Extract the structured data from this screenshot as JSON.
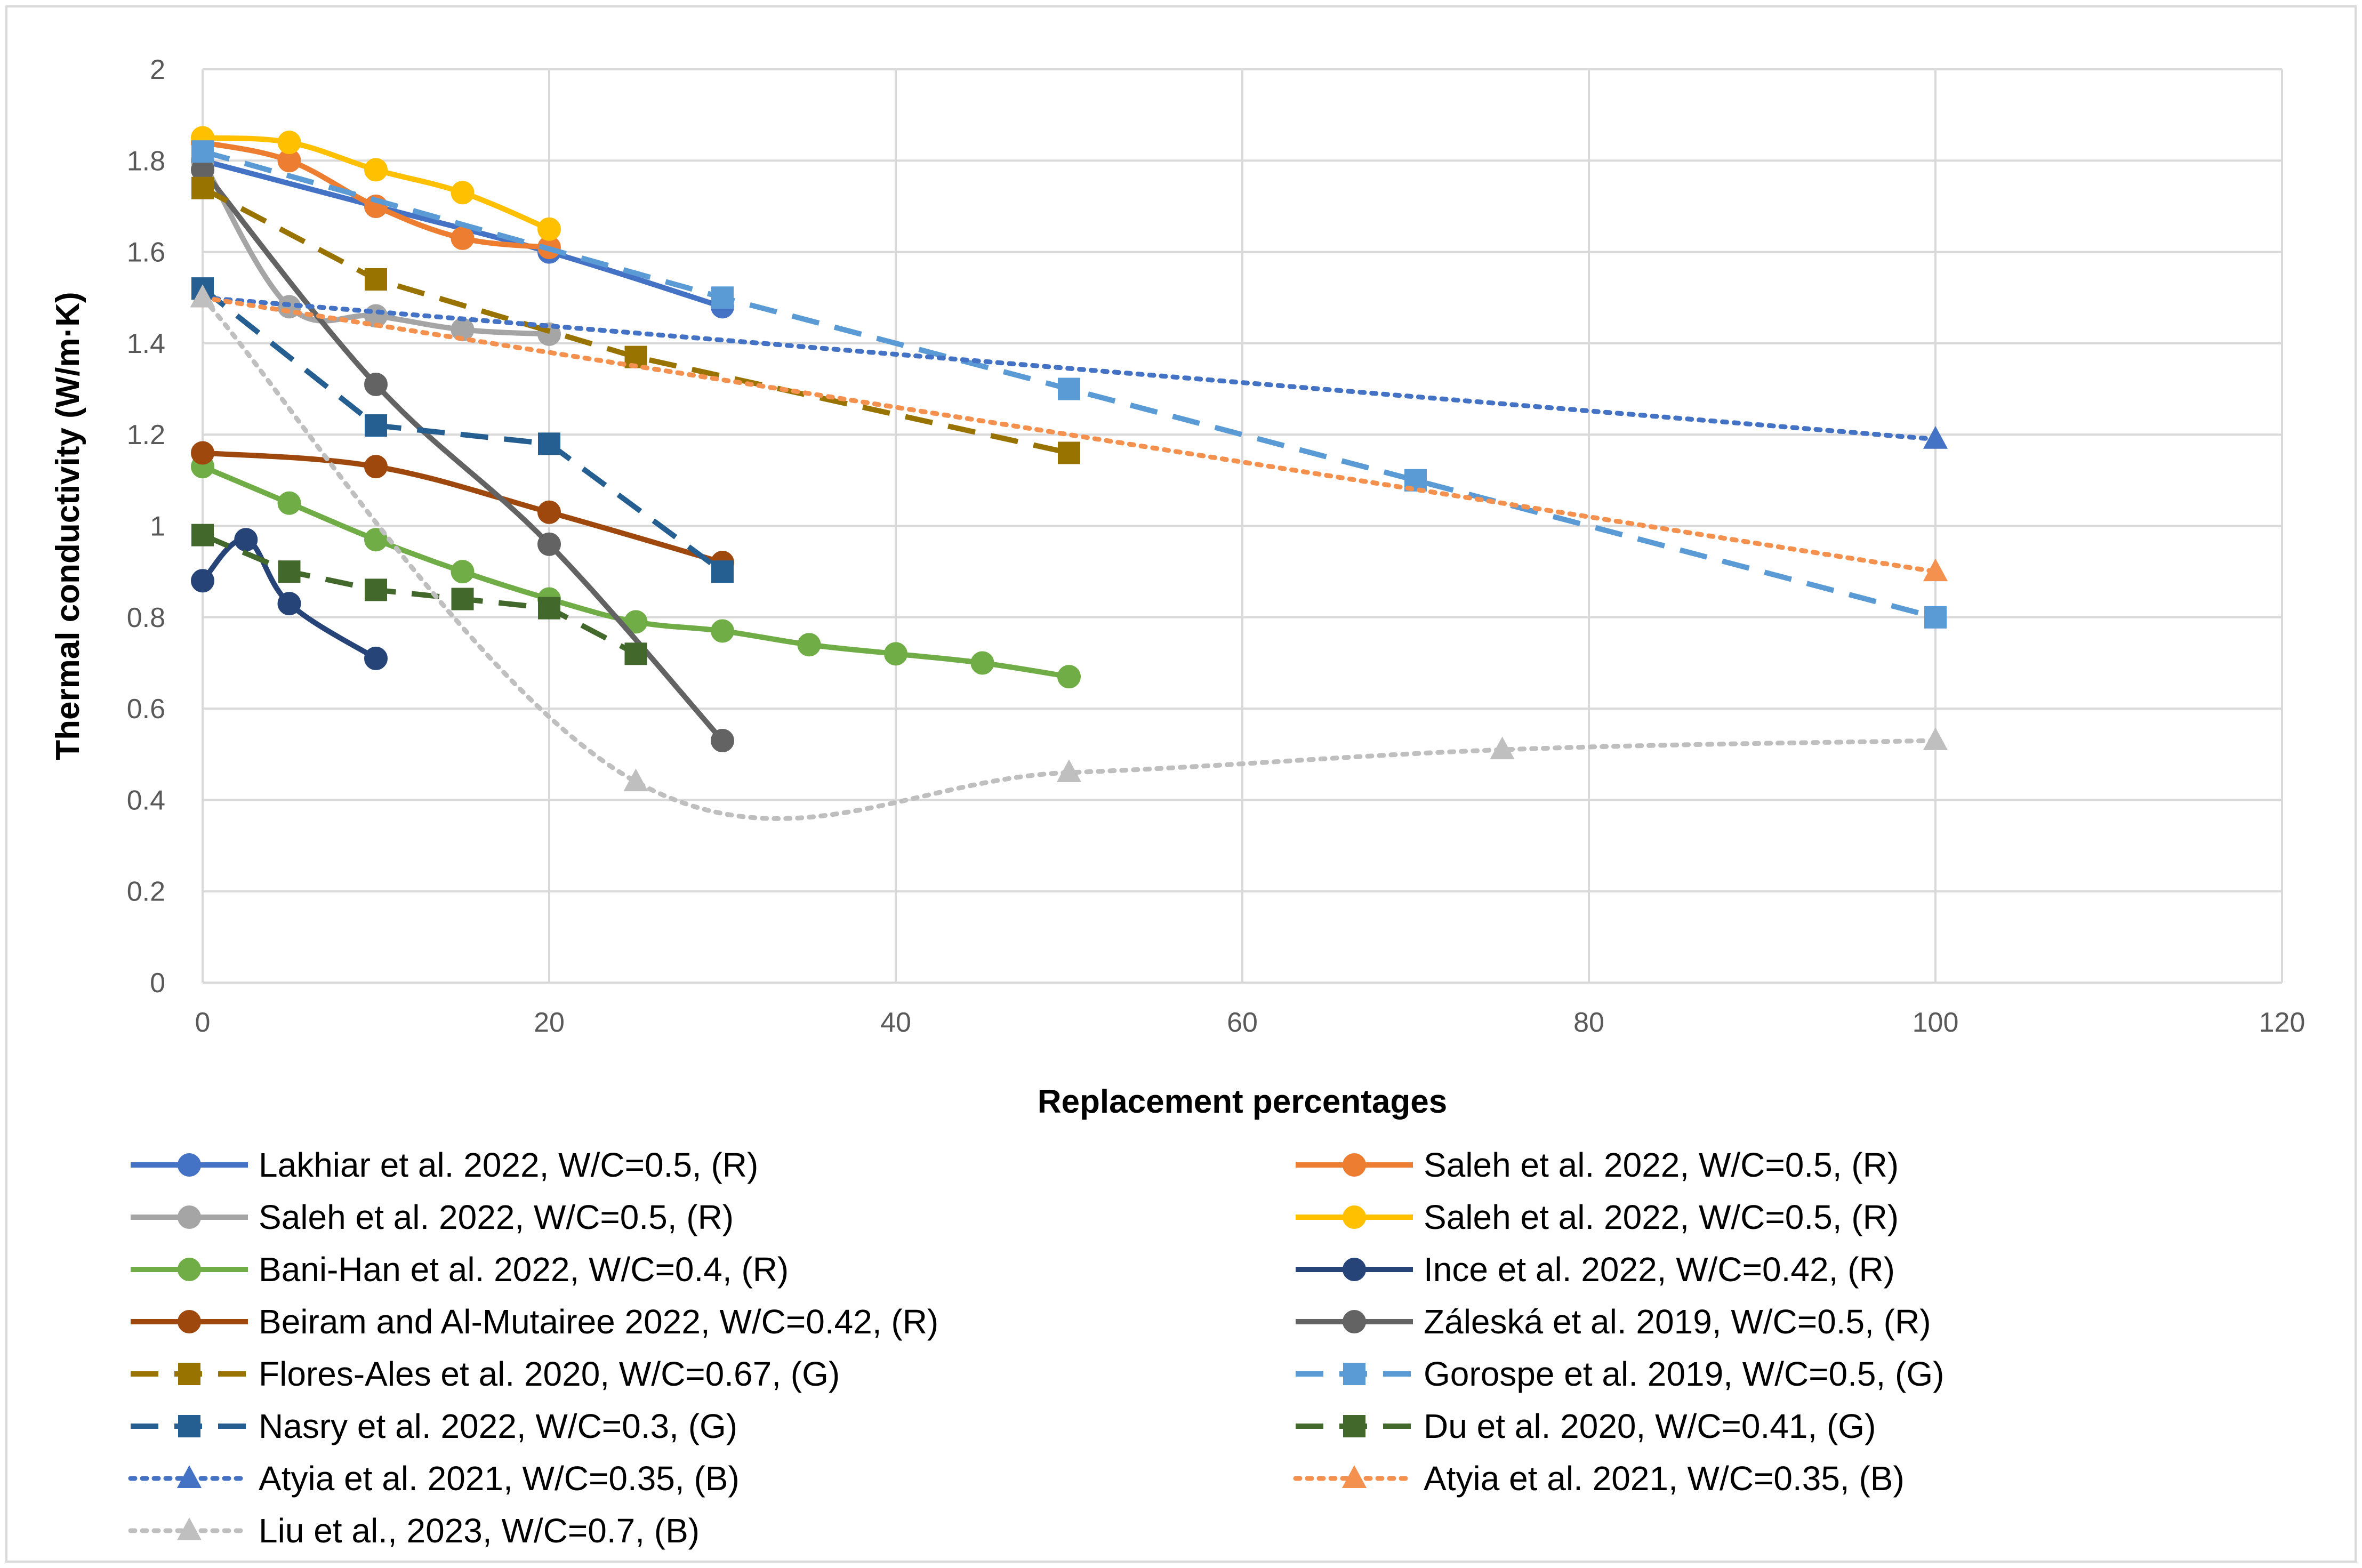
{
  "chart_data": {
    "type": "line",
    "title": "",
    "xlabel": "Replacement percentages",
    "ylabel": "Thermal conductivity (W/m·K)",
    "xlim": [
      0,
      120
    ],
    "ylim": [
      0,
      2
    ],
    "xticks": [
      "0",
      "20",
      "40",
      "60",
      "80",
      "100",
      "120"
    ],
    "yticks": [
      "0",
      "0.2",
      "0.4",
      "0.6",
      "0.8",
      "1",
      "1.2",
      "1.4",
      "1.6",
      "1.8",
      "2"
    ],
    "grid": true,
    "legend_position": "bottom",
    "series": [
      {
        "name": "Lakhiar et al. 2022, W/C=0.5, (R)",
        "color": "#4472C4",
        "dash": "solid",
        "marker": "circle",
        "smooth": true,
        "x": [
          0,
          10,
          20,
          30
        ],
        "y": [
          1.8,
          1.7,
          1.6,
          1.48
        ]
      },
      {
        "name": "Saleh et al. 2022, W/C=0.5, (R)",
        "color": "#ED7D31",
        "dash": "solid",
        "marker": "circle",
        "smooth": true,
        "x": [
          0,
          5,
          10,
          15,
          20
        ],
        "y": [
          1.84,
          1.8,
          1.7,
          1.63,
          1.61
        ]
      },
      {
        "name": "Saleh et al. 2022, W/C=0.5, (R)",
        "color": "#A5A5A5",
        "dash": "solid",
        "marker": "circle",
        "smooth": true,
        "x": [
          0,
          5,
          10,
          15,
          20
        ],
        "y": [
          1.8,
          1.48,
          1.46,
          1.43,
          1.42
        ]
      },
      {
        "name": "Saleh et al. 2022, W/C=0.5, (R)",
        "color": "#FFC000",
        "dash": "solid",
        "marker": "circle",
        "smooth": true,
        "x": [
          0,
          5,
          10,
          15,
          20
        ],
        "y": [
          1.85,
          1.84,
          1.78,
          1.73,
          1.65
        ]
      },
      {
        "name": "Bani-Han et al. 2022, W/C=0.4, (R)",
        "color": "#70AD47",
        "dash": "solid",
        "marker": "circle",
        "smooth": true,
        "x": [
          0,
          5,
          10,
          15,
          20,
          25,
          30,
          35,
          40,
          45,
          50
        ],
        "y": [
          1.13,
          1.05,
          0.97,
          0.9,
          0.84,
          0.79,
          0.77,
          0.74,
          0.72,
          0.7,
          0.67
        ]
      },
      {
        "name": "Ince et al. 2022, W/C=0.42, (R)",
        "color": "#264478",
        "dash": "solid",
        "marker": "circle",
        "smooth": true,
        "x": [
          0,
          2.5,
          5,
          10
        ],
        "y": [
          0.88,
          0.97,
          0.83,
          0.71
        ]
      },
      {
        "name": "Beiram and Al-Mutairee 2022, W/C=0.42, (R)",
        "color": "#9E480E",
        "dash": "solid",
        "marker": "circle",
        "smooth": true,
        "x": [
          0,
          10,
          20,
          30
        ],
        "y": [
          1.16,
          1.13,
          1.03,
          0.92
        ]
      },
      {
        "name": "Záleská et al. 2019, W/C=0.5, (R)",
        "color": "#636363",
        "dash": "solid",
        "marker": "circle",
        "smooth": true,
        "x": [
          0,
          10,
          20,
          30
        ],
        "y": [
          1.78,
          1.31,
          0.96,
          0.53
        ]
      },
      {
        "name": "Flores-Ales et al. 2020, W/C=0.67, (G)",
        "color": "#997300",
        "dash": "dash",
        "marker": "square",
        "smooth": false,
        "x": [
          0,
          10,
          25,
          50
        ],
        "y": [
          1.74,
          1.54,
          1.37,
          1.16
        ]
      },
      {
        "name": "Gorospe et al. 2019, W/C=0.5, (G)",
        "color": "#5B9BD5",
        "dash": "dash",
        "marker": "square",
        "smooth": false,
        "x": [
          0,
          30,
          50,
          70,
          100
        ],
        "y": [
          1.82,
          1.5,
          1.3,
          1.1,
          0.8
        ]
      },
      {
        "name": "Nasry et al. 2022, W/C=0.3, (G)",
        "color": "#255E91",
        "dash": "dash",
        "marker": "square",
        "smooth": false,
        "x": [
          0,
          10,
          20,
          30
        ],
        "y": [
          1.52,
          1.22,
          1.18,
          0.9
        ]
      },
      {
        "name": "Du et al. 2020, W/C=0.41, (G)",
        "color": "#43682B",
        "dash": "dash",
        "marker": "square",
        "smooth": false,
        "x": [
          0,
          5,
          10,
          15,
          20,
          25
        ],
        "y": [
          0.98,
          0.9,
          0.86,
          0.84,
          0.82,
          0.72
        ]
      },
      {
        "name": "Atyia et al. 2021, W/C=0.35, (B)",
        "color": "#4472C4",
        "dash": "dot",
        "marker": "triangle",
        "smooth": false,
        "x": [
          0,
          100
        ],
        "y": [
          1.5,
          1.19
        ]
      },
      {
        "name": "Atyia et al. 2021, W/C=0.35, (B)",
        "color": "#F4914E",
        "dash": "dot",
        "marker": "triangle",
        "smooth": false,
        "x": [
          0,
          100
        ],
        "y": [
          1.5,
          0.9
        ]
      },
      {
        "name": "Liu et al., 2023, W/C=0.7, (B)",
        "color": "#BFBFBF",
        "dash": "dot",
        "marker": "triangle",
        "smooth": true,
        "x": [
          0,
          25,
          50,
          75,
          100
        ],
        "y": [
          1.5,
          0.44,
          0.46,
          0.51,
          0.53
        ]
      }
    ]
  }
}
